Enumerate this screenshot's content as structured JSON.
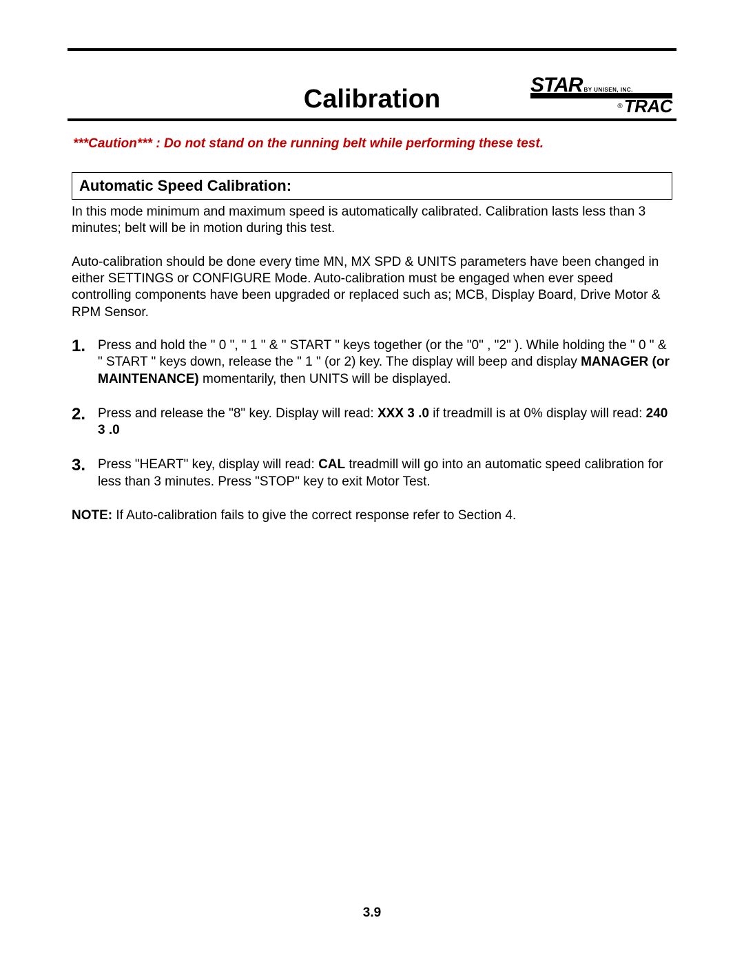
{
  "page": {
    "title": "Calibration",
    "number": "3.9"
  },
  "logo": {
    "star": "STAR",
    "byline": "BY UNISEN, INC.",
    "reg": "®",
    "trac": "TRAC"
  },
  "caution": "***Caution*** : Do not stand on the running belt while performing these test.",
  "section": {
    "heading": "Automatic Speed Calibration:",
    "para1": "In this mode minimum and maximum speed is automatically calibrated. Calibration lasts less than 3 minutes; belt will be in motion during this test.",
    "para2": "Auto-calibration should be done every time MN, MX SPD & UNITS parameters have been changed in either SETTINGS or CONFIGURE Mode. Auto-calibration must be engaged when ever speed controlling components have been upgraded or replaced such as; MCB, Display Board, Drive Motor & RPM Sensor."
  },
  "steps": [
    {
      "num": "1.",
      "pre": "Press and hold the \" 0 \", \" 1 \"  & \" START \" keys together (or the \"0\" , \"2\" ). While holding the \" 0 \" & \" START \" keys down, release the \" 1 \" (or 2) key. The display will beep and display ",
      "bold": "MANAGER (or MAINTENANCE)",
      "post": " momentarily, then UNITS will be displayed."
    },
    {
      "num": "2.",
      "pre": "Press and release the \"8\" key. Display will read:  ",
      "bold": "XXX  3  .0",
      "post": " if treadmill is at 0% display will read:  ",
      "bold2": "240  3  .0"
    },
    {
      "num": "3.",
      "pre": "Press \"HEART\" key, display will read: ",
      "bold": "CAL",
      "post": "  treadmill will go into an automatic speed calibration for less than 3 minutes. Press \"STOP\" key to exit Motor Test."
    }
  ],
  "note": {
    "label": "NOTE:",
    "text": " If Auto-calibration fails to give the correct response refer to Section 4."
  },
  "colors": {
    "caution": "#c00000",
    "text": "#000000",
    "background": "#ffffff"
  },
  "typography": {
    "title_fontsize": 38,
    "body_fontsize": 19,
    "stepnum_fontsize": 24,
    "heading_fontsize": 22
  }
}
